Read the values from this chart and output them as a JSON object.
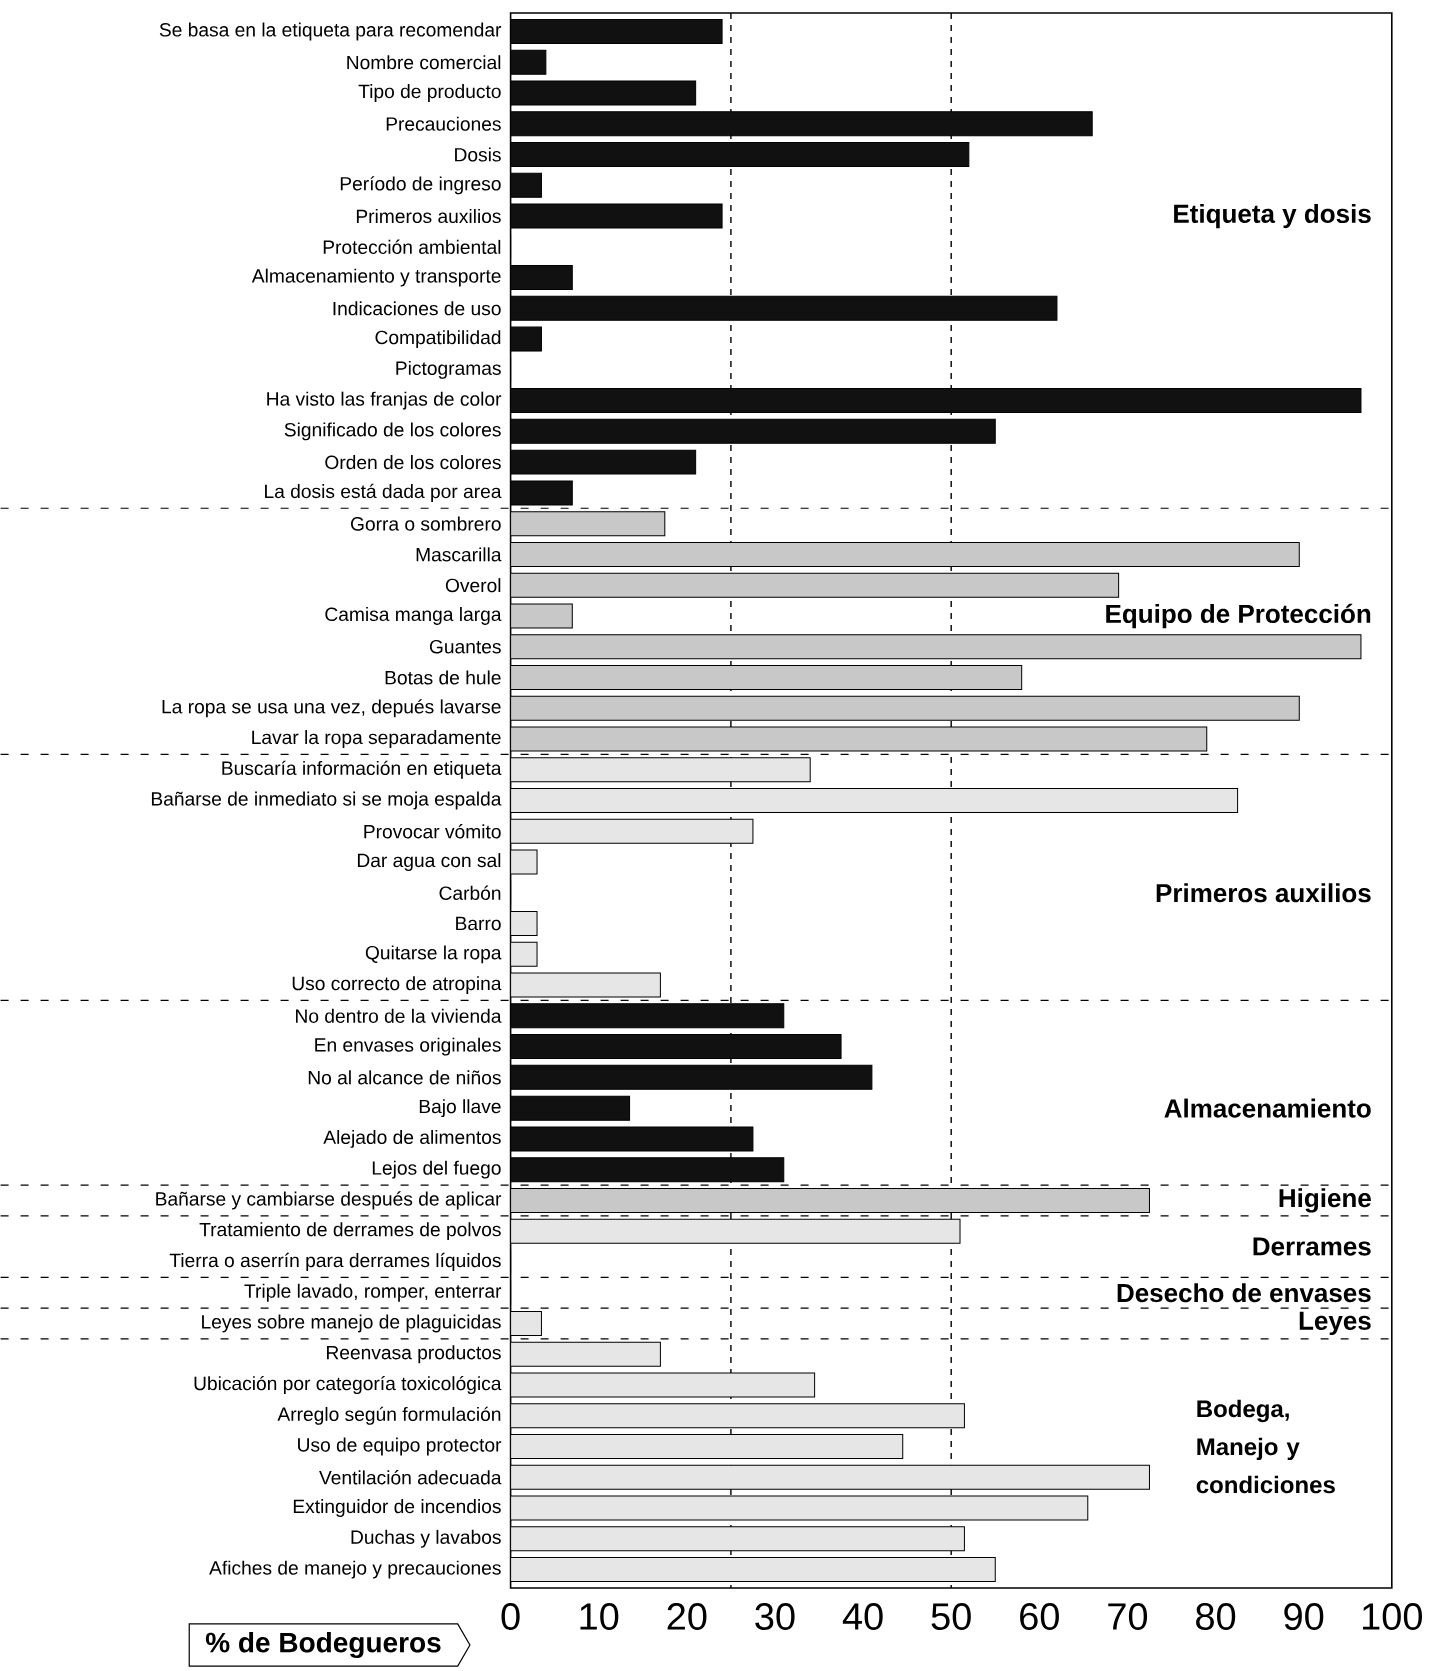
{
  "chart_data": {
    "type": "bar",
    "orientation": "horizontal",
    "xlabel": "% de Bodegueros",
    "categories": [
      "Se basa en la etiqueta para recomendar",
      "Nombre comercial",
      "Tipo de producto",
      "Precauciones",
      "Dosis",
      "Período de ingreso",
      "Primeros auxilios",
      "Protección ambiental",
      "Almacenamiento y transporte",
      "Indicaciones de uso",
      "Compatibilidad",
      "Pictogramas",
      "Ha visto las franjas de color",
      "Significado de los colores",
      "Orden de los colores",
      "La dosis está dada por area",
      "Gorra o sombrero",
      "Mascarilla",
      "Overol",
      "Camisa manga larga",
      "Guantes",
      "Botas de hule",
      "La ropa se usa una vez, depués lavarse",
      "Lavar la ropa separadamente",
      "Buscaría información en etiqueta",
      "Bañarse de inmediato si se moja espalda",
      "Provocar vómito",
      "Dar agua con sal",
      "Carbón",
      "Barro",
      "Quitarse la ropa",
      "Uso correcto de atropina",
      "No dentro de la vivienda",
      "En envases originales",
      "No al alcance de niños",
      "Bajo llave",
      "Alejado de alimentos",
      "Lejos del fuego",
      "Bañarse y cambiarse después de aplicar",
      "Tratamiento de derrames de polvos",
      "Tierra o aserrín para derrames líquidos",
      "Triple lavado, romper, enterrar",
      "Leyes sobre manejo de plaguicidas",
      "Reenvasa productos",
      "Ubicación por categoría toxicológica",
      "Arreglo según formulación",
      "Uso de equipo protector",
      "Ventilación adecuada",
      "Extinguidor de incendios",
      "Duchas y lavabos",
      "Afiches de manejo y precauciones"
    ],
    "values": [
      24,
      4,
      21,
      66,
      52,
      3.5,
      24,
      0,
      7,
      62,
      3.5,
      0,
      96.5,
      55,
      21,
      7,
      17.5,
      89.5,
      69,
      7,
      96.5,
      58,
      89.5,
      79,
      34,
      82.5,
      27.5,
      3,
      0,
      3,
      3,
      17,
      31,
      37.5,
      41,
      13.5,
      27.5,
      31,
      72.5,
      51,
      0,
      0,
      3.5,
      17,
      34.5,
      51.5,
      44.5,
      72.5,
      65.5,
      51.5,
      55
    ],
    "colors": [
      "#111111",
      "#111111",
      "#111111",
      "#111111",
      "#111111",
      "#111111",
      "#111111",
      "#111111",
      "#111111",
      "#111111",
      "#111111",
      "#111111",
      "#111111",
      "#111111",
      "#111111",
      "#111111",
      "#c8c8c8",
      "#c8c8c8",
      "#c8c8c8",
      "#c8c8c8",
      "#c8c8c8",
      "#c8c8c8",
      "#c8c8c8",
      "#c8c8c8",
      "#e6e6e6",
      "#e6e6e6",
      "#e6e6e6",
      "#e6e6e6",
      "#e6e6e6",
      "#e6e6e6",
      "#e6e6e6",
      "#e6e6e6",
      "#111111",
      "#111111",
      "#111111",
      "#111111",
      "#111111",
      "#111111",
      "#c8c8c8",
      "#e6e6e6",
      "#e6e6e6",
      "#e6e6e6",
      "#e6e6e6",
      "#e6e6e6",
      "#e6e6e6",
      "#e6e6e6",
      "#e6e6e6",
      "#e6e6e6",
      "#e6e6e6",
      "#e6e6e6",
      "#e6e6e6"
    ],
    "xlim": [
      0,
      100
    ],
    "xticks": [
      0,
      10,
      20,
      30,
      40,
      50,
      60,
      70,
      80,
      90,
      100
    ],
    "ref_lines": [
      {
        "axis": "x",
        "value": 25,
        "line_style": "dashed"
      },
      {
        "axis": "x",
        "value": 50,
        "line_style": "dashed"
      }
    ],
    "annotations": [
      "Etiqueta y dosis",
      "Equipo de Protección",
      "Primeros auxilios",
      "Almacenamiento",
      "Higiene",
      "Derrames",
      "Desecho de envases",
      "Leyes",
      "Bodega, Manejo y condiciones"
    ]
  }
}
